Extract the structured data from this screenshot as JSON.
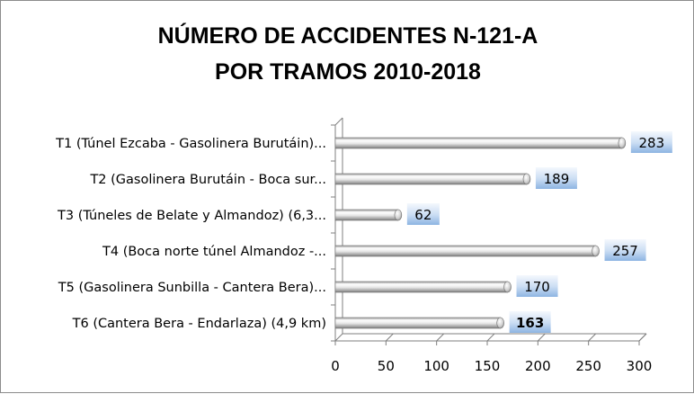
{
  "chart_data": {
    "type": "bar",
    "orientation": "horizontal",
    "title_lines": [
      "NÚMERO DE ACCIDENTES N-121-A",
      "POR TRAMOS 2010-2018"
    ],
    "categories": [
      "T1 (Túnel Ezcaba - Gasolinera Burutáin)...",
      "T2 (Gasolinera Burutáin - Boca sur...",
      "T3 (Túneles de Belate y Almandoz) (6,3...",
      "T4 (Boca norte túnel Almandoz -...",
      "T5 (Gasolinera Sunbilla - Cantera Bera)...",
      "T6 (Cantera Bera - Endarlaza) (4,9 km)"
    ],
    "values": [
      283,
      189,
      62,
      257,
      170,
      163
    ],
    "data_labels": [
      "283",
      "189",
      "62",
      "257",
      "170",
      "163"
    ],
    "highlight_index": 5,
    "xlim": [
      0,
      300
    ],
    "xticks": [
      0,
      50,
      100,
      150,
      200,
      250,
      300
    ],
    "tick_labels": [
      "0",
      "50",
      "100",
      "150",
      "200",
      "250",
      "300"
    ],
    "grid": false,
    "legend": "none",
    "colors": {
      "bar_light": "#ffffff",
      "bar_mid": "#d9d9d9",
      "bar_dark": "#8e8e8e",
      "label_box_top": "#eef4fc",
      "label_box_bottom": "#8db4e2",
      "highlight_text": "#ff0000",
      "axis": "#7f7f7f"
    }
  }
}
